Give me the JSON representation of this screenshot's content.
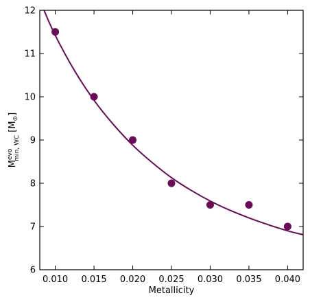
{
  "chart_data": {
    "type": "scatter",
    "xlabel": "Metallicity",
    "ylabel_main": "M",
    "ylabel_sup": "evo",
    "ylabel_sub": "min, WC",
    "ylabel_unit_open": "[M",
    "ylabel_unit_sym": "⊙",
    "ylabel_unit_close": "]",
    "xlim": [
      0.008,
      0.042
    ],
    "ylim": [
      6,
      12
    ],
    "x_ticks": [
      0.01,
      0.015,
      0.02,
      0.025,
      0.03,
      0.035,
      0.04
    ],
    "x_tick_labels": [
      "0.010",
      "0.015",
      "0.020",
      "0.025",
      "0.030",
      "0.035",
      "0.040"
    ],
    "y_ticks": [
      6,
      7,
      8,
      9,
      10,
      11,
      12
    ],
    "y_tick_labels": [
      "6",
      "7",
      "8",
      "9",
      "10",
      "11",
      "12"
    ],
    "grid": false,
    "points": {
      "x": [
        0.01,
        0.015,
        0.02,
        0.025,
        0.03,
        0.035,
        0.04
      ],
      "y": [
        11.5,
        10.0,
        9.0,
        8.0,
        7.5,
        7.5,
        7.0
      ],
      "color": "#6b0a57"
    },
    "fit_curve": {
      "x": [
        0.0085,
        0.01,
        0.0125,
        0.015,
        0.0175,
        0.02,
        0.0225,
        0.025,
        0.0275,
        0.03,
        0.0325,
        0.035,
        0.0375,
        0.04,
        0.042
      ],
      "y": [
        12.02,
        11.42,
        10.6,
        9.92,
        9.36,
        8.88,
        8.48,
        8.13,
        7.84,
        7.59,
        7.38,
        7.2,
        7.04,
        6.9,
        6.81
      ],
      "color": "#6b0a57"
    }
  }
}
